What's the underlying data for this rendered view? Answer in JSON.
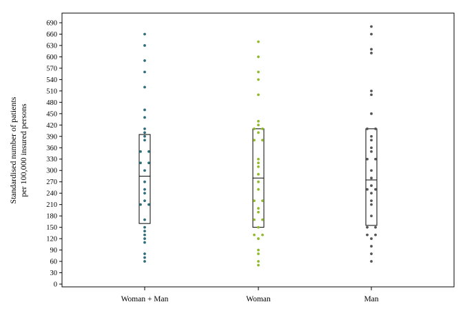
{
  "chart_data": {
    "type": "scatter",
    "subtype": "box-dot-plot",
    "title": "",
    "xlabel": "",
    "ylabel_lines": [
      "Standardised number of patients",
      "per 100,000 insured persons"
    ],
    "ylim": [
      0,
      700
    ],
    "yticks": [
      0,
      30,
      60,
      90,
      120,
      150,
      180,
      210,
      240,
      270,
      300,
      330,
      360,
      390,
      420,
      450,
      480,
      510,
      540,
      570,
      600,
      630,
      660,
      690
    ],
    "grid": false,
    "legend": "none",
    "categories": [
      "Woman + Man",
      "Woman",
      "Man"
    ],
    "series": [
      {
        "category": "Woman + Man",
        "color": "#2f6e7a",
        "box": {
          "q1": 160,
          "median": 285,
          "q3": 395
        },
        "points": [
          [
            0,
            660
          ],
          [
            0,
            630
          ],
          [
            0,
            590
          ],
          [
            0,
            560
          ],
          [
            0,
            520
          ],
          [
            0,
            460
          ],
          [
            0,
            440
          ],
          [
            0,
            410
          ],
          [
            0,
            400
          ],
          [
            0,
            390
          ],
          [
            0,
            380
          ],
          [
            -1,
            350
          ],
          [
            1,
            350
          ],
          [
            -1,
            320
          ],
          [
            1,
            320
          ],
          [
            0,
            300
          ],
          [
            0,
            270
          ],
          [
            0,
            250
          ],
          [
            0,
            240
          ],
          [
            0,
            220
          ],
          [
            -1,
            210
          ],
          [
            1,
            210
          ],
          [
            0,
            170
          ],
          [
            0,
            150
          ],
          [
            0,
            140
          ],
          [
            0,
            130
          ],
          [
            0,
            120
          ],
          [
            0,
            110
          ],
          [
            0,
            80
          ],
          [
            0,
            70
          ],
          [
            0,
            60
          ]
        ]
      },
      {
        "category": "Woman",
        "color": "#8fba2a",
        "box": {
          "q1": 150,
          "median": 280,
          "q3": 410
        },
        "points": [
          [
            0,
            640
          ],
          [
            0,
            600
          ],
          [
            0,
            560
          ],
          [
            0,
            540
          ],
          [
            0,
            500
          ],
          [
            0,
            430
          ],
          [
            0,
            420
          ],
          [
            -1,
            410
          ],
          [
            1,
            410
          ],
          [
            0,
            400
          ],
          [
            -1,
            380
          ],
          [
            1,
            380
          ],
          [
            0,
            330
          ],
          [
            0,
            320
          ],
          [
            0,
            310
          ],
          [
            0,
            290
          ],
          [
            0,
            270
          ],
          [
            0,
            250
          ],
          [
            -1,
            220
          ],
          [
            1,
            220
          ],
          [
            0,
            200
          ],
          [
            0,
            190
          ],
          [
            -1,
            170
          ],
          [
            1,
            170
          ],
          [
            0,
            150
          ],
          [
            -1,
            130
          ],
          [
            1,
            130
          ],
          [
            0,
            120
          ],
          [
            0,
            90
          ],
          [
            0,
            80
          ],
          [
            0,
            60
          ],
          [
            0,
            50
          ]
        ]
      },
      {
        "category": "Man",
        "color": "#555555",
        "box": {
          "q1": 155,
          "median": 275,
          "q3": 410
        },
        "points": [
          [
            0,
            680
          ],
          [
            0,
            660
          ],
          [
            0,
            620
          ],
          [
            0,
            610
          ],
          [
            0,
            510
          ],
          [
            0,
            500
          ],
          [
            0,
            450
          ],
          [
            -1,
            410
          ],
          [
            1,
            410
          ],
          [
            0,
            390
          ],
          [
            0,
            380
          ],
          [
            0,
            360
          ],
          [
            0,
            350
          ],
          [
            -1,
            330
          ],
          [
            1,
            330
          ],
          [
            0,
            300
          ],
          [
            0,
            280
          ],
          [
            0,
            260
          ],
          [
            -1,
            250
          ],
          [
            1,
            250
          ],
          [
            0,
            240
          ],
          [
            0,
            220
          ],
          [
            0,
            210
          ],
          [
            0,
            180
          ],
          [
            -1,
            150
          ],
          [
            1,
            150
          ],
          [
            -1,
            130
          ],
          [
            1,
            130
          ],
          [
            0,
            120
          ],
          [
            0,
            100
          ],
          [
            0,
            80
          ],
          [
            0,
            60
          ]
        ]
      }
    ]
  }
}
